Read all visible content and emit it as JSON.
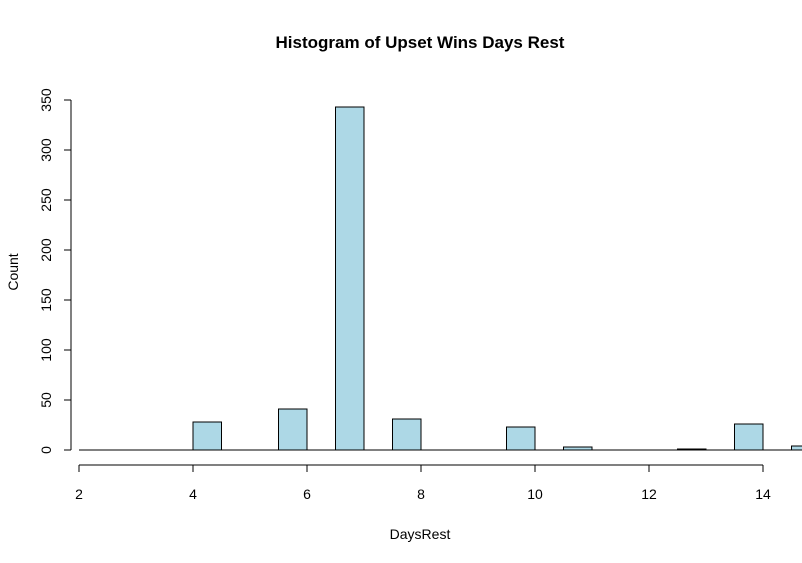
{
  "chart_data": {
    "type": "bar",
    "title": "Histogram of Upset Wins Days Rest",
    "xlabel": "DaysRest",
    "ylabel": "Count",
    "xlim": [
      2,
      14.7
    ],
    "ylim": [
      0,
      350
    ],
    "x_ticks": [
      2,
      4,
      6,
      8,
      10,
      12,
      14
    ],
    "y_ticks": [
      0,
      50,
      100,
      150,
      200,
      250,
      300,
      350
    ],
    "bins": [
      {
        "start": 4.0,
        "end": 4.5,
        "count": 28
      },
      {
        "start": 5.5,
        "end": 6.0,
        "count": 41
      },
      {
        "start": 6.5,
        "end": 7.0,
        "count": 343
      },
      {
        "start": 7.5,
        "end": 8.0,
        "count": 31
      },
      {
        "start": 9.5,
        "end": 10.0,
        "count": 23
      },
      {
        "start": 10.5,
        "end": 11.0,
        "count": 3
      },
      {
        "start": 12.5,
        "end": 13.0,
        "count": 1
      },
      {
        "start": 13.5,
        "end": 14.0,
        "count": 26
      },
      {
        "start": 14.5,
        "end": 15.0,
        "count": 4
      }
    ],
    "bar_color": "#add8e6",
    "grid": false,
    "legend": "none"
  }
}
